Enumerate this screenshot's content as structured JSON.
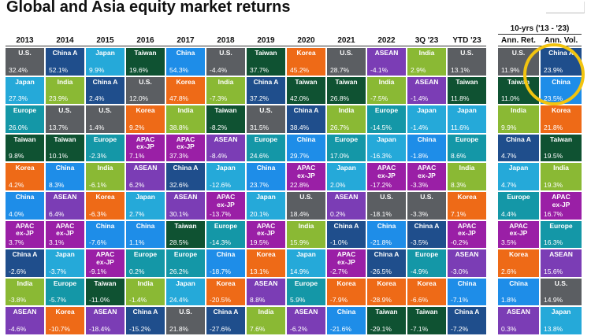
{
  "title": "Global and Asia equity market returns",
  "colors": {
    "U.S.": "#5b5e62",
    "China A": "#1f4e8c",
    "Japan": "#25a9d9",
    "Taiwan": "#0f5232",
    "China": "#1e8de8",
    "Korea": "#ee6a17",
    "ASEAN": "#7b3db5",
    "India": "#8ab934",
    "Europe": "#1497a7",
    "APAC ex-JP": "#9a1fa6"
  },
  "chart_data": {
    "type": "table",
    "title": "Global and Asia equity market returns",
    "columns": [
      "2013",
      "2014",
      "2015",
      "2016",
      "2017",
      "2018",
      "2019",
      "2020",
      "2021",
      "2022",
      "3Q '23",
      "YTD '23"
    ],
    "side_band_title": "10-yrs ('13 - '23)",
    "side_columns": [
      "Ann. Ret.",
      "Ann. Vol."
    ],
    "cells": [
      [
        [
          "U.S.",
          "32.4%"
        ],
        [
          "Japan",
          "27.3%"
        ],
        [
          "Europe",
          "26.0%"
        ],
        [
          "Taiwan",
          "9.8%"
        ],
        [
          "Korea",
          "4.2%"
        ],
        [
          "China",
          "4.0%"
        ],
        [
          "APAC ex-JP",
          "3.7%"
        ],
        [
          "China A",
          "-2.6%"
        ],
        [
          "India",
          "-3.8%"
        ],
        [
          "ASEAN",
          "-4.6%"
        ]
      ],
      [
        [
          "China A",
          "52.1%"
        ],
        [
          "India",
          "23.9%"
        ],
        [
          "U.S.",
          "13.7%"
        ],
        [
          "Taiwan",
          "10.1%"
        ],
        [
          "China",
          "8.3%"
        ],
        [
          "ASEAN",
          "6.4%"
        ],
        [
          "APAC ex-JP",
          "3.1%"
        ],
        [
          "Japan",
          "-3.7%"
        ],
        [
          "Europe",
          "-5.7%"
        ],
        [
          "Korea",
          "-10.7%"
        ]
      ],
      [
        [
          "Japan",
          "9.9%"
        ],
        [
          "China A",
          "2.4%"
        ],
        [
          "U.S.",
          "1.4%"
        ],
        [
          "Europe",
          "-2.3%"
        ],
        [
          "India",
          "-6.1%"
        ],
        [
          "Korea",
          "-6.3%"
        ],
        [
          "China",
          "-7.6%"
        ],
        [
          "APAC ex-JP",
          "-9.1%"
        ],
        [
          "Taiwan",
          "-11.0%"
        ],
        [
          "ASEAN",
          "-18.4%"
        ]
      ],
      [
        [
          "Taiwan",
          "19.6%"
        ],
        [
          "U.S.",
          "12.0%"
        ],
        [
          "Korea",
          "9.2%"
        ],
        [
          "APAC ex-JP",
          "7.1%"
        ],
        [
          "ASEAN",
          "6.2%"
        ],
        [
          "Japan",
          "2.7%"
        ],
        [
          "China",
          "1.1%"
        ],
        [
          "Europe",
          "0.2%"
        ],
        [
          "India",
          "-1.4%"
        ],
        [
          "China A",
          "-15.2%"
        ]
      ],
      [
        [
          "China",
          "54.3%"
        ],
        [
          "Korea",
          "47.8%"
        ],
        [
          "India",
          "38.8%"
        ],
        [
          "APAC ex-JP",
          "37.3%"
        ],
        [
          "China A",
          "32.6%"
        ],
        [
          "ASEAN",
          "30.1%"
        ],
        [
          "Taiwan",
          "28.5%"
        ],
        [
          "Europe",
          "26.2%"
        ],
        [
          "Japan",
          "24.4%"
        ],
        [
          "U.S.",
          "21.8%"
        ]
      ],
      [
        [
          "U.S.",
          "-4.4%"
        ],
        [
          "India",
          "-7.3%"
        ],
        [
          "Taiwan",
          "-8.2%"
        ],
        [
          "ASEAN",
          "-8.4%"
        ],
        [
          "Japan",
          "-12.6%"
        ],
        [
          "APAC ex-JP",
          "-13.7%"
        ],
        [
          "Europe",
          "-14.3%"
        ],
        [
          "China",
          "-18.7%"
        ],
        [
          "Korea",
          "-20.5%"
        ],
        [
          "China A",
          "-27.6%"
        ]
      ],
      [
        [
          "Taiwan",
          "37.7%"
        ],
        [
          "China A",
          "37.2%"
        ],
        [
          "U.S.",
          "31.5%"
        ],
        [
          "Europe",
          "24.6%"
        ],
        [
          "China",
          "23.7%"
        ],
        [
          "Japan",
          "20.1%"
        ],
        [
          "APAC ex-JP",
          "19.5%"
        ],
        [
          "Korea",
          "13.1%"
        ],
        [
          "ASEAN",
          "8.8%"
        ],
        [
          "India",
          "7.6%"
        ]
      ],
      [
        [
          "Korea",
          "45.2%"
        ],
        [
          "Taiwan",
          "42.0%"
        ],
        [
          "China A",
          "38.4%"
        ],
        [
          "China",
          "29.7%"
        ],
        [
          "APAC ex-JP",
          "22.8%"
        ],
        [
          "U.S.",
          "18.4%"
        ],
        [
          "India",
          "15.9%"
        ],
        [
          "Japan",
          "14.9%"
        ],
        [
          "Europe",
          "5.9%"
        ],
        [
          "ASEAN",
          "-6.2%"
        ]
      ],
      [
        [
          "U.S.",
          "28.7%"
        ],
        [
          "Taiwan",
          "26.8%"
        ],
        [
          "India",
          "26.7%"
        ],
        [
          "Europe",
          "17.0%"
        ],
        [
          "Japan",
          "2.0%"
        ],
        [
          "ASEAN",
          "0.2%"
        ],
        [
          "China A",
          "-1.0%"
        ],
        [
          "APAC ex-JP",
          "-2.7%"
        ],
        [
          "Korea",
          "-7.9%"
        ],
        [
          "China",
          "-21.6%"
        ]
      ],
      [
        [
          "ASEAN",
          "-4.1%"
        ],
        [
          "India",
          "-7.5%"
        ],
        [
          "Europe",
          "-14.5%"
        ],
        [
          "Japan",
          "-16.3%"
        ],
        [
          "APAC ex-JP",
          "-17.2%"
        ],
        [
          "U.S.",
          "-18.1%"
        ],
        [
          "China",
          "-21.8%"
        ],
        [
          "China A",
          "-26.5%"
        ],
        [
          "Korea",
          "-28.9%"
        ],
        [
          "Taiwan",
          "-29.1%"
        ]
      ],
      [
        [
          "India",
          "2.9%"
        ],
        [
          "ASEAN",
          "-1.4%"
        ],
        [
          "Japan",
          "-1.4%"
        ],
        [
          "China",
          "-1.8%"
        ],
        [
          "APAC ex-JP",
          "-3.3%"
        ],
        [
          "U.S.",
          "-3.3%"
        ],
        [
          "China A",
          "-3.5%"
        ],
        [
          "Europe",
          "-4.9%"
        ],
        [
          "Korea",
          "-6.6%"
        ],
        [
          "Taiwan",
          "-7.1%"
        ]
      ],
      [
        [
          "U.S.",
          "13.1%"
        ],
        [
          "Taiwan",
          "11.8%"
        ],
        [
          "Japan",
          "11.6%"
        ],
        [
          "Europe",
          "8.6%"
        ],
        [
          "India",
          "8.3%"
        ],
        [
          "Korea",
          "7.1%"
        ],
        [
          "APAC ex-JP",
          "-0.2%"
        ],
        [
          "ASEAN",
          "-3.0%"
        ],
        [
          "China",
          "-7.1%"
        ],
        [
          "China A",
          "-7.2%"
        ]
      ]
    ],
    "side_cells": [
      [
        [
          "U.S.",
          "11.9%"
        ],
        [
          "Taiwan",
          "11.0%"
        ],
        [
          "India",
          "9.9%"
        ],
        [
          "China A",
          "4.7%"
        ],
        [
          "Japan",
          "4.7%"
        ],
        [
          "Europe",
          "4.4%"
        ],
        [
          "APAC ex-JP",
          "3.5%"
        ],
        [
          "Korea",
          "2.6%"
        ],
        [
          "China",
          "1.8%"
        ],
        [
          "ASEAN",
          "0.3%"
        ]
      ],
      [
        [
          "China A",
          "23.9%"
        ],
        [
          "China",
          "23.5%"
        ],
        [
          "Korea",
          "21.8%"
        ],
        [
          "Taiwan",
          "19.5%"
        ],
        [
          "India",
          "19.3%"
        ],
        [
          "APAC ex-JP",
          "16.7%"
        ],
        [
          "Europe",
          "16.3%"
        ],
        [
          "ASEAN",
          "15.6%"
        ],
        [
          "U.S.",
          "14.9%"
        ],
        [
          "Japan",
          "13.8%"
        ]
      ]
    ]
  }
}
